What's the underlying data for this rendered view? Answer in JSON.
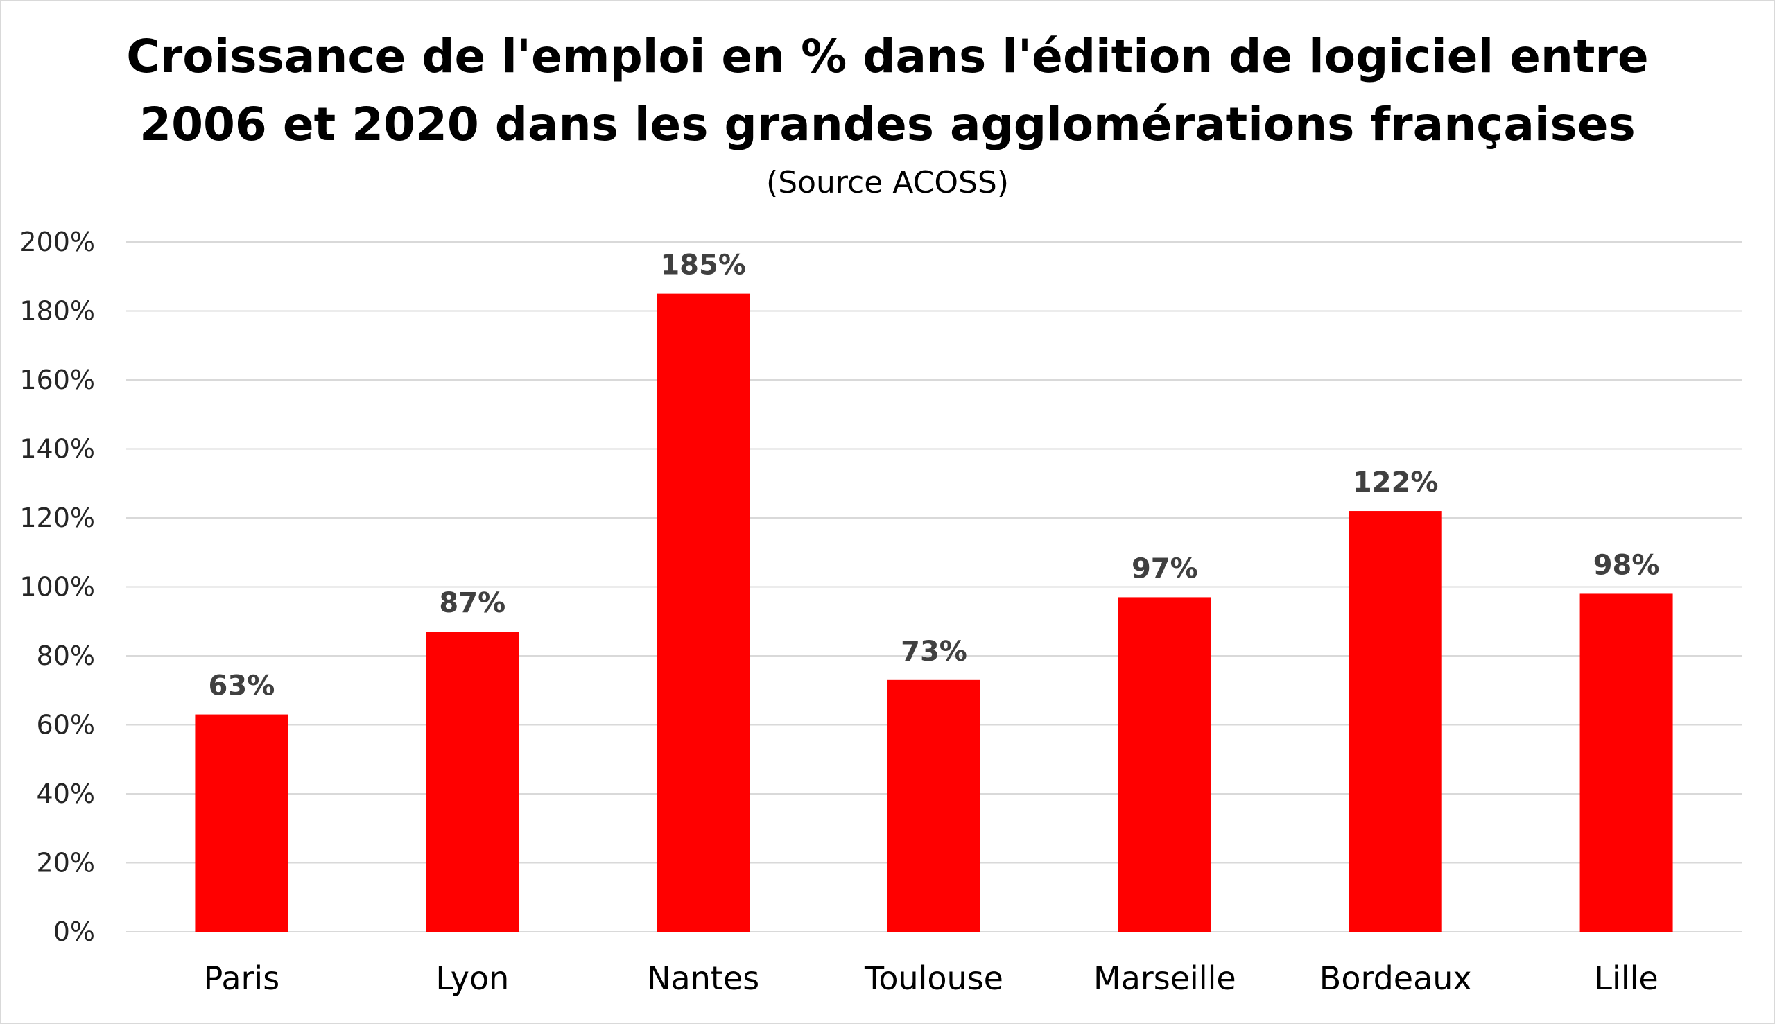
{
  "chart_data": {
    "type": "bar",
    "title_lines": [
      "Croissance de l'emploi en % dans l'édition de logiciel entre",
      "2006 et 2020 dans les grandes agglomérations françaises"
    ],
    "subtitle": "(Source  ACOSS)",
    "categories": [
      "Paris",
      "Lyon",
      "Nantes",
      "Toulouse",
      "Marseille",
      "Bordeaux",
      "Lille"
    ],
    "values": [
      63,
      87,
      185,
      73,
      97,
      122,
      98
    ],
    "data_labels": [
      "63%",
      "87%",
      "185%",
      "73%",
      "97%",
      "122%",
      "98%"
    ],
    "xlabel": "",
    "ylabel": "",
    "ylim": [
      0,
      200
    ],
    "yticks": [
      0,
      20,
      40,
      60,
      80,
      100,
      120,
      140,
      160,
      180,
      200
    ],
    "ytick_labels": [
      "0%",
      "20%",
      "40%",
      "60%",
      "80%",
      "100%",
      "120%",
      "140%",
      "160%",
      "180%",
      "200%"
    ],
    "grid": true,
    "legend": "none",
    "bar_color": "#ff0000",
    "gridline_color": "#d9d9d9",
    "data_label_color": "#404040"
  }
}
